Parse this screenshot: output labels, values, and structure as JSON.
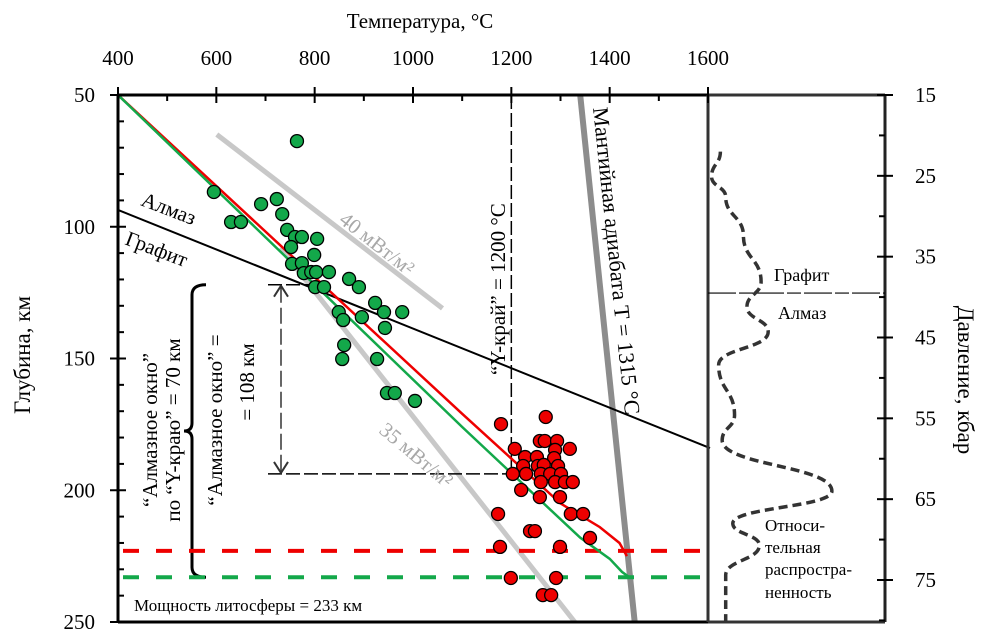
{
  "chart_data": {
    "type": "scatter",
    "title": "",
    "xlabel": "Температура, °C",
    "ylabel": "Глубина, км",
    "y2label": "Давление, кбар",
    "xlim": [
      400,
      1600
    ],
    "ylim": [
      50,
      250
    ],
    "y2lim": [
      15,
      75
    ],
    "x_ticks": [
      400,
      600,
      800,
      1000,
      1200,
      1400,
      1600
    ],
    "x_tick_labels": [
      "400",
      "600",
      "800",
      "1000",
      "1200",
      "1400",
      "1600"
    ],
    "y_ticks": [
      50,
      100,
      150,
      200,
      250
    ],
    "y_tick_labels": [
      "50",
      "100",
      "150",
      "200",
      "250"
    ],
    "y2_ticks": [
      15,
      25,
      35,
      45,
      55,
      65,
      75
    ],
    "y2_tick_labels": [
      "15",
      "25",
      "35",
      "45",
      "55",
      "65",
      "75"
    ],
    "grid": false,
    "series": [
      {
        "name": "green-xenoliths",
        "kind": "scatter",
        "color": "#13a84a",
        "points": [
          [
            764,
            67.5
          ],
          [
            595,
            86.8
          ],
          [
            691,
            91.4
          ],
          [
            723,
            89.5
          ],
          [
            630,
            98.2
          ],
          [
            650,
            98.2
          ],
          [
            734,
            95.2
          ],
          [
            744,
            101.2
          ],
          [
            760,
            103.9
          ],
          [
            774,
            103.9
          ],
          [
            805,
            104.6
          ],
          [
            752,
            107.7
          ],
          [
            799,
            110.7
          ],
          [
            754,
            114.1
          ],
          [
            774,
            113.8
          ],
          [
            778,
            117.6
          ],
          [
            793,
            117.2
          ],
          [
            803,
            117.2
          ],
          [
            829,
            117.2
          ],
          [
            870,
            119.8
          ],
          [
            890,
            122.9
          ],
          [
            801,
            122.9
          ],
          [
            819,
            122.9
          ],
          [
            923,
            128.9
          ],
          [
            941,
            132.4
          ],
          [
            978,
            132.4
          ],
          [
            849,
            132.4
          ],
          [
            858,
            135.4
          ],
          [
            896,
            134.3
          ],
          [
            943,
            138.4
          ],
          [
            860,
            144.9
          ],
          [
            856,
            150.2
          ],
          [
            927,
            150.2
          ],
          [
            947,
            163.1
          ],
          [
            963,
            163.1
          ],
          [
            1004,
            166.1
          ]
        ]
      },
      {
        "name": "red-xenoliths",
        "kind": "scatter",
        "color": "#ee0000",
        "points": [
          [
            1179,
            174.9
          ],
          [
            1270,
            172.2
          ],
          [
            1258,
            181.3
          ],
          [
            1268,
            181.3
          ],
          [
            1293,
            181.3
          ],
          [
            1207,
            184.3
          ],
          [
            1289,
            184.7
          ],
          [
            1319,
            184.3
          ],
          [
            1228,
            187.4
          ],
          [
            1252,
            187.4
          ],
          [
            1287,
            187.8
          ],
          [
            1224,
            190.8
          ],
          [
            1254,
            190.8
          ],
          [
            1266,
            190.4
          ],
          [
            1295,
            190.8
          ],
          [
            1203,
            193.8
          ],
          [
            1230,
            193.8
          ],
          [
            1260,
            193.8
          ],
          [
            1279,
            193.8
          ],
          [
            1301,
            193.8
          ],
          [
            1260,
            196.9
          ],
          [
            1289,
            196.9
          ],
          [
            1309,
            196.9
          ],
          [
            1325,
            196.9
          ],
          [
            1220,
            199.9
          ],
          [
            1258,
            202.6
          ],
          [
            1299,
            202.6
          ],
          [
            1321,
            209.0
          ],
          [
            1346,
            209.0
          ],
          [
            1173,
            209.0
          ],
          [
            1238,
            215.5
          ],
          [
            1248,
            215.5
          ],
          [
            1360,
            218.1
          ],
          [
            1177,
            221.5
          ],
          [
            1299,
            221.5
          ],
          [
            1199,
            233.3
          ],
          [
            1291,
            233.3
          ],
          [
            1264,
            239.8
          ],
          [
            1281,
            239.8
          ]
        ]
      },
      {
        "name": "red-geotherm",
        "kind": "line",
        "color": "#ee0000",
        "points": [
          [
            400,
            50
          ],
          [
            1100,
            171
          ],
          [
            1300,
            205
          ],
          [
            1380,
            214
          ],
          [
            1420,
            220
          ],
          [
            1435,
            225
          ]
        ]
      },
      {
        "name": "green-geotherm",
        "kind": "line",
        "color": "#13a84a",
        "points": [
          [
            400,
            50
          ],
          [
            1100,
            176
          ],
          [
            1340,
            218
          ],
          [
            1400,
            226
          ],
          [
            1425,
            231
          ],
          [
            1440,
            233
          ]
        ]
      },
      {
        "name": "geotherm-40",
        "kind": "line",
        "color": "#c8c8c8",
        "points": [
          [
            601,
            65
          ],
          [
            1060,
            131
          ]
        ]
      },
      {
        "name": "geotherm-35",
        "kind": "line",
        "color": "#c8c8c8",
        "points": [
          [
            730,
            108
          ],
          [
            1329,
            250
          ]
        ]
      },
      {
        "name": "mantle-adiabat",
        "kind": "line",
        "color": "#8c8c8c",
        "points": [
          [
            1340,
            50
          ],
          [
            1451,
            250
          ]
        ]
      },
      {
        "name": "graphite-diamond-boundary",
        "kind": "line",
        "color": "#000000",
        "points": [
          [
            400,
            93.6
          ],
          [
            1604,
            184
          ]
        ]
      },
      {
        "name": "y-edge-1200",
        "kind": "vline",
        "x": 1200,
        "y_range": [
          50,
          193.8
        ]
      },
      {
        "name": "red-lithosphere-base",
        "kind": "hline",
        "y": 223,
        "color": "#ee0000"
      },
      {
        "name": "green-lithosphere-base",
        "kind": "hline",
        "y": 233,
        "color": "#13a84a"
      }
    ],
    "diamond_window": {
      "top_depth": 122,
      "bottom_depth": 193.8
    },
    "distribution_panel": {
      "graphite_diamond_pressure": 39.5,
      "relative_abundance_curve": [
        [
          0.07,
          22
        ],
        [
          0.02,
          25.1
        ],
        [
          0.1,
          27.6
        ],
        [
          0.2,
          32.4
        ],
        [
          0.3,
          38.1
        ],
        [
          0.22,
          41.2
        ],
        [
          0.34,
          44.3
        ],
        [
          0.06,
          48.4
        ],
        [
          0.15,
          54.6
        ],
        [
          0.08,
          57.7
        ],
        [
          0.7,
          64.0
        ],
        [
          0.14,
          68.0
        ],
        [
          0.29,
          70.7
        ],
        [
          0.1,
          74.4
        ],
        [
          0.1,
          80.6
        ]
      ]
    },
    "annotations": {
      "diamond": "Алмаз",
      "graphite": "Графит",
      "hf40": "40 мВт/м²",
      "hf35": "35 мВт/м²",
      "y_edge": "“Y-край” = 1200 °C",
      "adiabat": "Мантийная адиабата T = 1315 °C",
      "window_y_line1": "“Алмазное окно”",
      "window_y_line2": "по “Y-краю” = 70 км",
      "window_line1": "“Алмазное окно” =",
      "window_line2": "= 108 км",
      "lithosphere": "Мощность литосферы = 233 км",
      "panel_graphite": "Графит",
      "panel_diamond": "Алмаз",
      "abundance_1": "Относи-",
      "abundance_2": "тельная",
      "abundance_3": "распростра-",
      "abundance_4": "ненность"
    }
  }
}
